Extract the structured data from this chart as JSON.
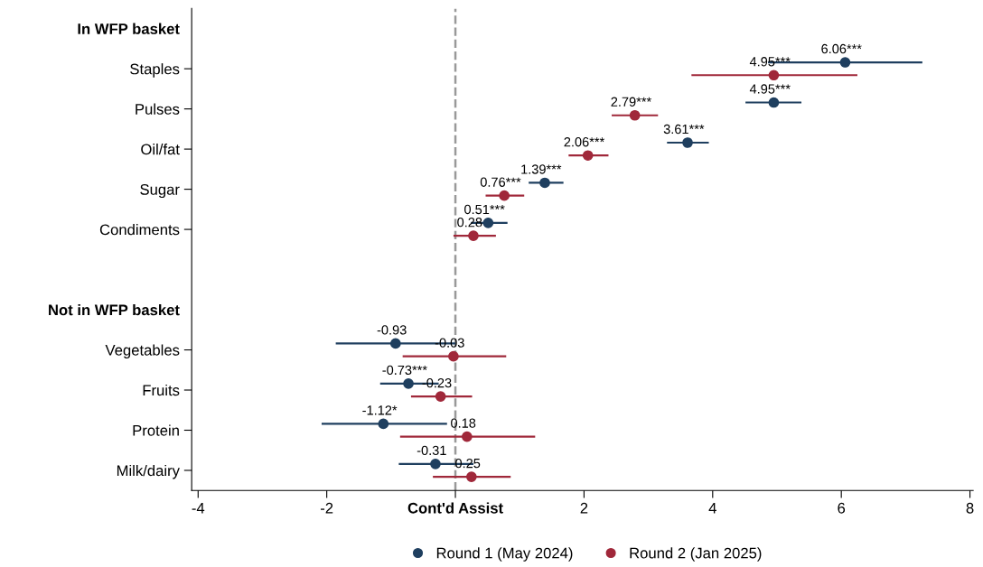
{
  "chart_data": {
    "type": "scatter",
    "orientation": "horizontal",
    "categories": [
      "In WFP basket",
      "Staples",
      "Pulses",
      "Oil/fat",
      "Sugar",
      "Condiments",
      null,
      "Not in WFP basket",
      "Vegetables",
      "Fruits",
      "Protein",
      "Milk/dairy"
    ],
    "series": [
      {
        "name": "Round 1 (May 2024)",
        "color": "#1f3f5f",
        "values": [
          null,
          6.06,
          4.95,
          3.61,
          1.39,
          0.51,
          null,
          null,
          -0.93,
          -0.73,
          -1.12,
          -0.31
        ],
        "errors": [
          null,
          [
            4.86,
            7.26
          ],
          [
            4.51,
            5.38
          ],
          [
            3.29,
            3.94
          ],
          [
            1.14,
            1.68
          ],
          [
            0.24,
            0.81
          ],
          null,
          null,
          [
            -1.86,
            0.0
          ],
          [
            -1.17,
            -0.26
          ],
          [
            -2.08,
            -0.13
          ],
          [
            -0.88,
            0.28
          ]
        ],
        "value_labels": [
          null,
          "6.06***",
          "4.95***",
          "3.61***",
          "1.39***",
          "0.51***",
          null,
          null,
          "-0.93",
          "-0.73***",
          "-1.12*",
          "-0.31"
        ]
      },
      {
        "name": "Round 2 (Jan 2025)",
        "color": "#a0283a",
        "values": [
          null,
          4.95,
          2.79,
          2.06,
          0.76,
          0.28,
          null,
          null,
          -0.03,
          -0.23,
          0.18,
          0.25
        ],
        "errors": [
          null,
          [
            3.67,
            6.25
          ],
          [
            2.43,
            3.15
          ],
          [
            1.76,
            2.38
          ],
          [
            0.47,
            1.07
          ],
          [
            -0.03,
            0.63
          ],
          null,
          null,
          [
            -0.82,
            0.79
          ],
          [
            -0.69,
            0.26
          ],
          [
            -0.86,
            1.24
          ],
          [
            -0.35,
            0.86
          ]
        ],
        "value_labels": [
          null,
          "4.95***",
          "2.79***",
          "2.06***",
          "0.76***",
          "0.28",
          null,
          null,
          "-0.03",
          "-0.23",
          "0.18",
          "0.25"
        ]
      }
    ],
    "xlim": [
      -4.1,
      8.05
    ],
    "xticks": [
      -4,
      -2,
      {
        "value": 0,
        "label": "Cont'd Assist"
      },
      2,
      4,
      6,
      8
    ],
    "ref_lines": [
      {
        "axis": "x",
        "value": 0,
        "color": "#999999",
        "line_style": "dashed"
      }
    ],
    "marker": "circle",
    "grid": false,
    "legend": "bottom"
  }
}
